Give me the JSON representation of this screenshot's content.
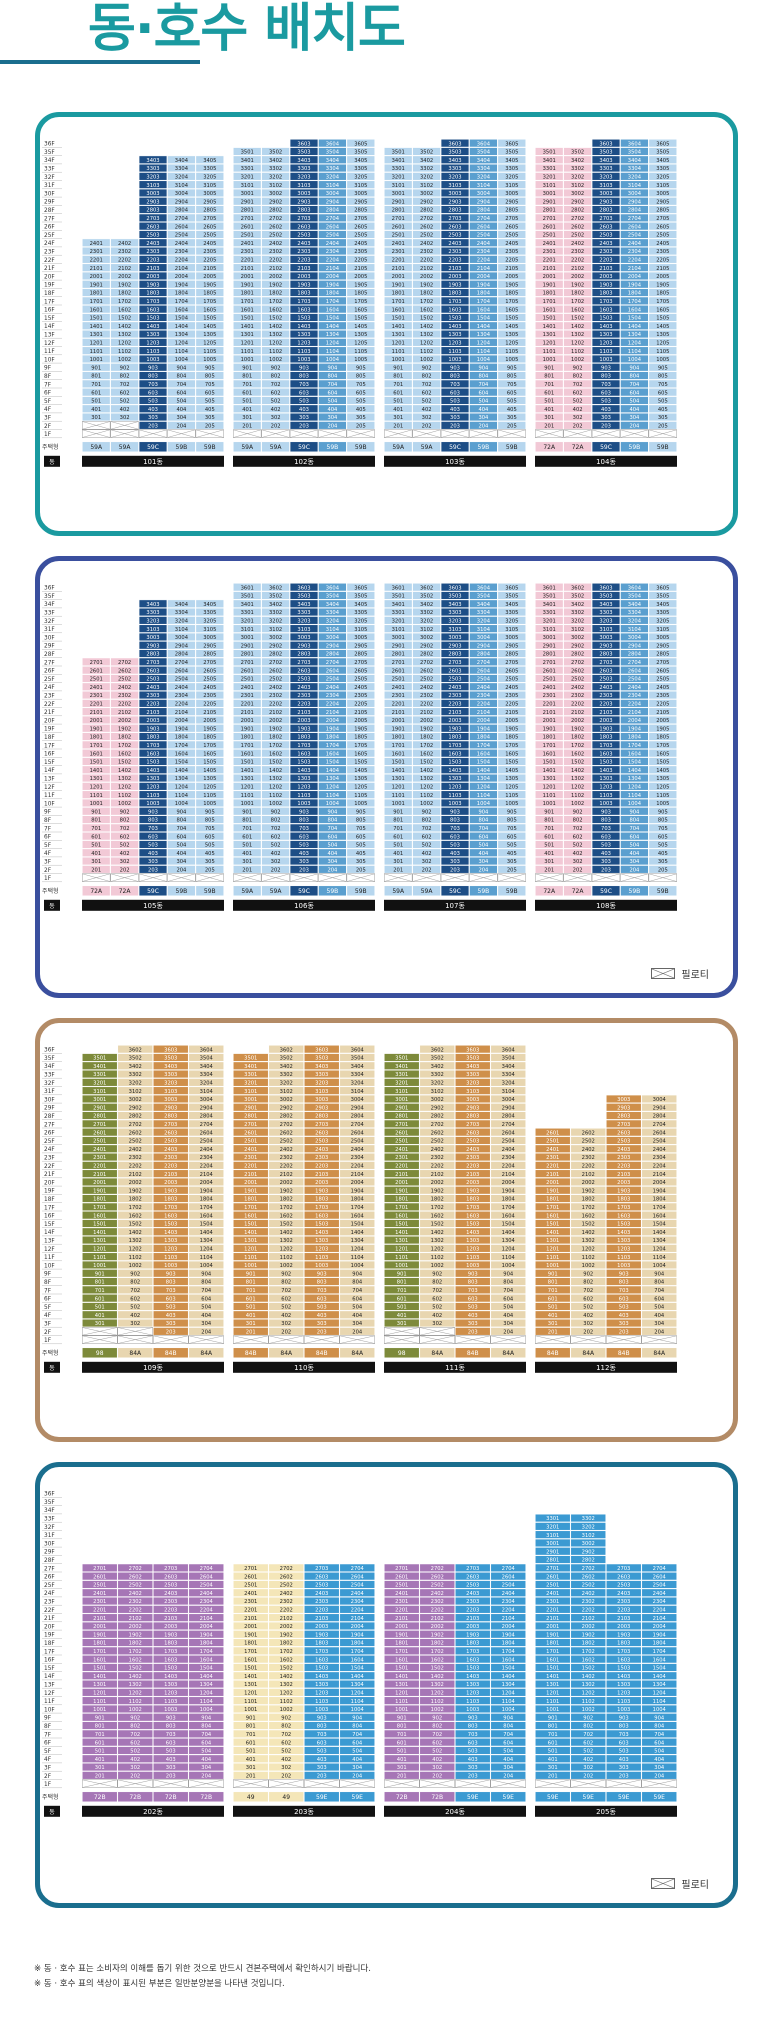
{
  "page": {
    "title": "동·호수 배치도"
  },
  "palette": {
    "lightblue": "#b6d6ee",
    "midblue": "#5a9fcf",
    "navy": "#1d4e86",
    "teal": "#2f7ea6",
    "pink": "#f2c9d6",
    "tan": "#e8d6b0",
    "orange": "#cf8f4a",
    "olive": "#7d8a3a",
    "olivelight": "#b9c27a",
    "purple": "#a676b6",
    "cream": "#f4e6b8",
    "sky": "#3b9ad2"
  },
  "sections": [
    {
      "border": "#1a9aa0",
      "top": 112,
      "height": 424,
      "legend": false
    },
    {
      "border": "#3a4f9e",
      "top": 556,
      "height": 442,
      "legend": true
    },
    {
      "border": "#b38b66",
      "top": 1018,
      "height": 424,
      "legend": false
    },
    {
      "border": "#1a6e8e",
      "top": 1462,
      "height": 446,
      "legend": true
    }
  ],
  "labels": {
    "type_label": "주택형",
    "dong_label": "동",
    "piloti": "필로티"
  },
  "floors36": [
    "36F",
    "35F",
    "34F",
    "33F",
    "32F",
    "31F",
    "30F",
    "29F",
    "28F",
    "27F",
    "26F",
    "25F",
    "24F",
    "23F",
    "22F",
    "21F",
    "20F",
    "19F",
    "18F",
    "17F",
    "16F",
    "15F",
    "14F",
    "13F",
    "12F",
    "11F",
    "10F",
    "9F",
    "8F",
    "7F",
    "6F",
    "5F",
    "4F",
    "3F",
    "2F",
    "1F"
  ],
  "buildings": [
    {
      "section": 0,
      "slot": 0,
      "name": "101동",
      "cols": [
        {
          "line": "01",
          "type": "59A",
          "top": 24,
          "pil": 2,
          "color": "lightblue"
        },
        {
          "line": "02",
          "type": "59A",
          "top": 24,
          "pil": 2,
          "color": "lightblue"
        },
        {
          "line": "03",
          "type": "59C",
          "top": 34,
          "pil": 1,
          "color": "navy"
        },
        {
          "line": "04",
          "type": "59B",
          "top": 34,
          "pil": 1,
          "color": "lightblue"
        },
        {
          "line": "05",
          "type": "59B",
          "top": 34,
          "pil": 1,
          "color": "lightblue"
        }
      ]
    },
    {
      "section": 0,
      "slot": 1,
      "name": "102동",
      "cols": [
        {
          "line": "01",
          "type": "59A",
          "top": 35,
          "pil": 1,
          "color": "lightblue"
        },
        {
          "line": "02",
          "type": "59A",
          "top": 35,
          "pil": 1,
          "color": "lightblue"
        },
        {
          "line": "03",
          "type": "59C",
          "top": 36,
          "pil": 1,
          "color": "navy"
        },
        {
          "line": "04",
          "type": "59B",
          "top": 36,
          "pil": 1,
          "color": "midblue"
        },
        {
          "line": "05",
          "type": "59B",
          "top": 36,
          "pil": 1,
          "color": "lightblue"
        }
      ]
    },
    {
      "section": 0,
      "slot": 2,
      "name": "103동",
      "cols": [
        {
          "line": "01",
          "type": "59A",
          "top": 35,
          "pil": 1,
          "color": "lightblue"
        },
        {
          "line": "02",
          "type": "59A",
          "top": 35,
          "pil": 1,
          "color": "lightblue"
        },
        {
          "line": "03",
          "type": "59C",
          "top": 36,
          "pil": 1,
          "color": "navy"
        },
        {
          "line": "04",
          "type": "59B",
          "top": 36,
          "pil": 1,
          "color": "midblue"
        },
        {
          "line": "05",
          "type": "59B",
          "top": 36,
          "pil": 1,
          "color": "lightblue"
        }
      ]
    },
    {
      "section": 0,
      "slot": 3,
      "name": "104동",
      "cols": [
        {
          "line": "01",
          "type": "72A",
          "top": 35,
          "pil": 1,
          "color": "pink"
        },
        {
          "line": "02",
          "type": "72A",
          "top": 35,
          "pil": 1,
          "color": "pink"
        },
        {
          "line": "03",
          "type": "59C",
          "top": 36,
          "pil": 1,
          "color": "navy"
        },
        {
          "line": "04",
          "type": "59B",
          "top": 36,
          "pil": 1,
          "color": "midblue"
        },
        {
          "line": "05",
          "type": "59B",
          "top": 36,
          "pil": 1,
          "color": "lightblue"
        }
      ]
    },
    {
      "section": 1,
      "slot": 0,
      "name": "105동",
      "cols": [
        {
          "line": "01",
          "type": "72A",
          "top": 27,
          "pil": 1,
          "color": "pink"
        },
        {
          "line": "02",
          "type": "72A",
          "top": 27,
          "pil": 1,
          "color": "pink"
        },
        {
          "line": "03",
          "type": "59C",
          "top": 34,
          "pil": 1,
          "color": "navy"
        },
        {
          "line": "04",
          "type": "59B",
          "top": 34,
          "pil": 1,
          "color": "lightblue"
        },
        {
          "line": "05",
          "type": "59B",
          "top": 34,
          "pil": 1,
          "color": "lightblue"
        }
      ]
    },
    {
      "section": 1,
      "slot": 1,
      "name": "106동",
      "cols": [
        {
          "line": "01",
          "type": "59A",
          "top": 36,
          "pil": 1,
          "color": "lightblue"
        },
        {
          "line": "02",
          "type": "59A",
          "top": 36,
          "pil": 1,
          "color": "lightblue"
        },
        {
          "line": "03",
          "type": "59C",
          "top": 36,
          "pil": 1,
          "color": "navy"
        },
        {
          "line": "04",
          "type": "59B",
          "top": 36,
          "pil": 1,
          "color": "midblue"
        },
        {
          "line": "05",
          "type": "59B",
          "top": 36,
          "pil": 1,
          "color": "lightblue"
        }
      ]
    },
    {
      "section": 1,
      "slot": 2,
      "name": "107동",
      "cols": [
        {
          "line": "01",
          "type": "59A",
          "top": 36,
          "pil": 1,
          "color": "lightblue"
        },
        {
          "line": "02",
          "type": "59A",
          "top": 36,
          "pil": 1,
          "color": "lightblue"
        },
        {
          "line": "03",
          "type": "59C",
          "top": 36,
          "pil": 1,
          "color": "navy"
        },
        {
          "line": "04",
          "type": "59B",
          "top": 36,
          "pil": 1,
          "color": "midblue"
        },
        {
          "line": "05",
          "type": "59B",
          "top": 36,
          "pil": 1,
          "color": "lightblue"
        }
      ]
    },
    {
      "section": 1,
      "slot": 3,
      "name": "108동",
      "cols": [
        {
          "line": "01",
          "type": "72A",
          "top": 36,
          "pil": 1,
          "color": "pink"
        },
        {
          "line": "02",
          "type": "72A",
          "top": 36,
          "pil": 1,
          "color": "pink"
        },
        {
          "line": "03",
          "type": "59C",
          "top": 36,
          "pil": 1,
          "color": "navy"
        },
        {
          "line": "04",
          "type": "59B",
          "top": 36,
          "pil": 1,
          "color": "midblue"
        },
        {
          "line": "05",
          "type": "59B",
          "top": 36,
          "pil": 1,
          "color": "lightblue"
        }
      ]
    },
    {
      "section": 2,
      "slot": 0,
      "name": "109동",
      "cols": [
        {
          "line": "01",
          "type": "98",
          "top": 35,
          "pil": 2,
          "color": "olive"
        },
        {
          "line": "02",
          "type": "84A",
          "top": 36,
          "pil": 2,
          "color": "tan"
        },
        {
          "line": "03",
          "type": "84B",
          "top": 36,
          "pil": 1,
          "color": "orange"
        },
        {
          "line": "04",
          "type": "84A",
          "top": 36,
          "pil": 1,
          "color": "tan"
        }
      ]
    },
    {
      "section": 2,
      "slot": 1,
      "name": "110동",
      "cols": [
        {
          "line": "01",
          "type": "84B",
          "top": 35,
          "pil": 1,
          "color": "orange"
        },
        {
          "line": "02",
          "type": "84A",
          "top": 36,
          "pil": 1,
          "color": "tan"
        },
        {
          "line": "03",
          "type": "84B",
          "top": 36,
          "pil": 1,
          "color": "orange"
        },
        {
          "line": "04",
          "type": "84A",
          "top": 36,
          "pil": 1,
          "color": "tan"
        }
      ]
    },
    {
      "section": 2,
      "slot": 2,
      "name": "111동",
      "cols": [
        {
          "line": "01",
          "type": "98",
          "top": 35,
          "pil": 2,
          "color": "olive"
        },
        {
          "line": "02",
          "type": "84A",
          "top": 36,
          "pil": 2,
          "color": "tan"
        },
        {
          "line": "03",
          "type": "84B",
          "top": 36,
          "pil": 1,
          "color": "orange"
        },
        {
          "line": "04",
          "type": "84A",
          "top": 36,
          "pil": 1,
          "color": "tan"
        }
      ]
    },
    {
      "section": 2,
      "slot": 3,
      "name": "112동",
      "cols": [
        {
          "line": "01",
          "type": "84B",
          "top": 26,
          "pil": 1,
          "color": "orange"
        },
        {
          "line": "02",
          "type": "84A",
          "top": 26,
          "pil": 1,
          "color": "tan"
        },
        {
          "line": "03",
          "type": "84B",
          "top": 30,
          "pil": 1,
          "color": "orange"
        },
        {
          "line": "04",
          "type": "84A",
          "top": 30,
          "pil": 1,
          "color": "tan"
        }
      ]
    },
    {
      "section": 3,
      "slot": 0,
      "name": "202동",
      "cols": [
        {
          "line": "01",
          "type": "72B",
          "top": 27,
          "pil": 1,
          "color": "purple"
        },
        {
          "line": "02",
          "type": "72B",
          "top": 27,
          "pil": 1,
          "color": "purple"
        },
        {
          "line": "03",
          "type": "72B",
          "top": 27,
          "pil": 1,
          "color": "purple"
        },
        {
          "line": "04",
          "type": "72B",
          "top": 27,
          "pil": 1,
          "color": "purple"
        }
      ]
    },
    {
      "section": 3,
      "slot": 1,
      "name": "203동",
      "cols": [
        {
          "line": "01",
          "type": "49",
          "top": 27,
          "pil": 1,
          "color": "cream"
        },
        {
          "line": "02",
          "type": "49",
          "top": 27,
          "pil": 1,
          "color": "cream"
        },
        {
          "line": "03",
          "type": "59E",
          "top": 27,
          "pil": 1,
          "color": "sky"
        },
        {
          "line": "04",
          "type": "59E",
          "top": 27,
          "pil": 1,
          "color": "sky"
        }
      ]
    },
    {
      "section": 3,
      "slot": 2,
      "name": "204동",
      "cols": [
        {
          "line": "01",
          "type": "72B",
          "top": 27,
          "pil": 1,
          "color": "purple"
        },
        {
          "line": "02",
          "type": "72B",
          "top": 27,
          "pil": 1,
          "color": "purple"
        },
        {
          "line": "03",
          "type": "59E",
          "top": 27,
          "pil": 1,
          "color": "sky"
        },
        {
          "line": "04",
          "type": "59E",
          "top": 27,
          "pil": 1,
          "color": "sky"
        }
      ]
    },
    {
      "section": 3,
      "slot": 3,
      "name": "205동",
      "cols": [
        {
          "line": "01",
          "type": "59E",
          "top": 33,
          "pil": 1,
          "color": "sky"
        },
        {
          "line": "02",
          "type": "59E",
          "top": 33,
          "pil": 1,
          "color": "sky"
        },
        {
          "line": "03",
          "type": "59E",
          "top": 27,
          "pil": 1,
          "color": "sky"
        },
        {
          "line": "04",
          "type": "59E",
          "top": 27,
          "pil": 1,
          "color": "sky"
        }
      ]
    }
  ],
  "notes": [
    "※ 동 · 호수 표는 소비자의 이해를 돕기 위한 것으로 반드시 견본주택에서 확인하시기 바랍니다.",
    "※ 동 · 호수 표의 색상이 표시된 부분은 일반분양분을 나타낸 것입니다."
  ]
}
